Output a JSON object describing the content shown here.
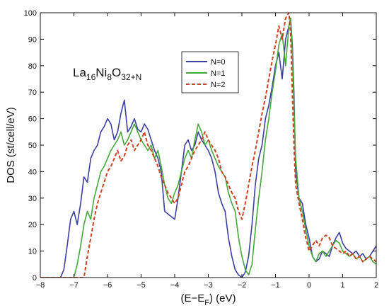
{
  "chart_data": {
    "type": "line",
    "title": "",
    "formula": {
      "base": [
        "La",
        "Ni",
        "O"
      ],
      "subs": [
        "16",
        "8",
        "32+N"
      ]
    },
    "xlabel": {
      "prefix": "(E−E",
      "sub": "F",
      "suffix": ") (eV)"
    },
    "ylabel": "DOS (st/cell/eV)",
    "xlim": [
      -8,
      2
    ],
    "ylim": [
      0,
      100
    ],
    "xticks": [
      -8,
      -7,
      -6,
      -5,
      -4,
      -3,
      -2,
      -1,
      0,
      1,
      2
    ],
    "yticks": [
      0,
      10,
      20,
      30,
      40,
      50,
      60,
      70,
      80,
      90,
      100
    ],
    "grid": false,
    "legend_position": "upper-middle",
    "series": [
      {
        "name": "N=0",
        "color": "#3a3fa0",
        "dash": "solid",
        "x": [
          -8.0,
          -7.4,
          -7.3,
          -7.2,
          -7.1,
          -7.0,
          -6.9,
          -6.8,
          -6.7,
          -6.6,
          -6.5,
          -6.4,
          -6.3,
          -6.2,
          -6.1,
          -6.0,
          -5.9,
          -5.8,
          -5.7,
          -5.6,
          -5.5,
          -5.4,
          -5.3,
          -5.2,
          -5.1,
          -5.0,
          -4.9,
          -4.8,
          -4.7,
          -4.6,
          -4.5,
          -4.4,
          -4.3,
          -4.2,
          -4.1,
          -4.0,
          -3.9,
          -3.8,
          -3.7,
          -3.6,
          -3.5,
          -3.4,
          -3.3,
          -3.2,
          -3.1,
          -3.0,
          -2.9,
          -2.8,
          -2.7,
          -2.6,
          -2.5,
          -2.4,
          -2.3,
          -2.2,
          -2.1,
          -2.0,
          -1.9,
          -1.8,
          -1.7,
          -1.6,
          -1.5,
          -1.4,
          -1.3,
          -1.2,
          -1.1,
          -1.0,
          -0.9,
          -0.8,
          -0.7,
          -0.6,
          -0.55,
          -0.5,
          -0.45,
          -0.4,
          -0.3,
          -0.2,
          -0.1,
          0.0,
          0.1,
          0.2,
          0.3,
          0.4,
          0.5,
          0.6,
          0.7,
          0.8,
          0.9,
          1.0,
          1.1,
          1.2,
          1.3,
          1.4,
          1.5,
          1.6,
          1.7,
          1.8,
          1.9,
          2.0
        ],
        "y": [
          0,
          0,
          3,
          12,
          22,
          25,
          20,
          28,
          38,
          36,
          45,
          48,
          50,
          55,
          57,
          60,
          58,
          52,
          55,
          62,
          67,
          55,
          57,
          60,
          56,
          55,
          58,
          56,
          52,
          48,
          45,
          40,
          25,
          24,
          23,
          22,
          30,
          40,
          50,
          52,
          48,
          50,
          55,
          52,
          50,
          48,
          45,
          40,
          32,
          28,
          25,
          15,
          8,
          3,
          1,
          0,
          2,
          8,
          20,
          35,
          45,
          50,
          60,
          65,
          72,
          80,
          85,
          75,
          90,
          95,
          98,
          88,
          70,
          40,
          30,
          28,
          20,
          15,
          8,
          6,
          7,
          10,
          9,
          8,
          12,
          15,
          17,
          13,
          11,
          10,
          9,
          10,
          8,
          9,
          7,
          8,
          10,
          12
        ]
      },
      {
        "name": "N=1",
        "color": "#45a83a",
        "dash": "solid",
        "x": [
          -8.0,
          -7.0,
          -6.9,
          -6.8,
          -6.7,
          -6.6,
          -6.5,
          -6.4,
          -6.3,
          -6.2,
          -6.1,
          -6.0,
          -5.9,
          -5.8,
          -5.7,
          -5.6,
          -5.5,
          -5.4,
          -5.3,
          -5.2,
          -5.1,
          -5.0,
          -4.9,
          -4.8,
          -4.7,
          -4.6,
          -4.5,
          -4.4,
          -4.3,
          -4.2,
          -4.1,
          -4.0,
          -3.9,
          -3.8,
          -3.7,
          -3.6,
          -3.5,
          -3.4,
          -3.3,
          -3.2,
          -3.1,
          -3.0,
          -2.9,
          -2.8,
          -2.7,
          -2.6,
          -2.5,
          -2.4,
          -2.3,
          -2.2,
          -2.1,
          -2.0,
          -1.9,
          -1.8,
          -1.7,
          -1.6,
          -1.5,
          -1.4,
          -1.3,
          -1.2,
          -1.1,
          -1.0,
          -0.9,
          -0.8,
          -0.7,
          -0.6,
          -0.55,
          -0.5,
          -0.45,
          -0.4,
          -0.3,
          -0.2,
          -0.1,
          0.0,
          0.1,
          0.2,
          0.3,
          0.4,
          0.5,
          0.6,
          0.7,
          0.8,
          0.9,
          1.0,
          1.1,
          1.2,
          1.3,
          1.4,
          1.5,
          1.6,
          1.7,
          1.8,
          1.9,
          2.0
        ],
        "y": [
          0,
          0,
          5,
          12,
          20,
          25,
          22,
          30,
          35,
          40,
          42,
          45,
          48,
          50,
          52,
          55,
          50,
          52,
          55,
          58,
          55,
          52,
          50,
          48,
          50,
          45,
          48,
          42,
          35,
          30,
          28,
          32,
          35,
          40,
          45,
          48,
          45,
          52,
          58,
          55,
          50,
          52,
          48,
          45,
          42,
          40,
          38,
          32,
          28,
          25,
          15,
          8,
          3,
          1,
          5,
          18,
          30,
          40,
          52,
          60,
          70,
          78,
          88,
          92,
          80,
          95,
          98,
          85,
          65,
          45,
          30,
          25,
          18,
          12,
          8,
          6,
          9,
          10,
          8,
          10,
          12,
          14,
          13,
          10,
          9,
          8,
          9,
          7,
          8,
          6,
          7,
          8,
          6,
          5
        ]
      },
      {
        "name": "N=2",
        "color": "#d0401f",
        "dash": "dashed",
        "x": [
          -8.0,
          -6.7,
          -6.6,
          -6.5,
          -6.4,
          -6.3,
          -6.2,
          -6.1,
          -6.0,
          -5.9,
          -5.8,
          -5.7,
          -5.6,
          -5.5,
          -5.4,
          -5.3,
          -5.2,
          -5.1,
          -5.0,
          -4.9,
          -4.8,
          -4.7,
          -4.6,
          -4.5,
          -4.4,
          -4.3,
          -4.2,
          -4.1,
          -4.0,
          -3.9,
          -3.8,
          -3.7,
          -3.6,
          -3.5,
          -3.4,
          -3.3,
          -3.2,
          -3.1,
          -3.0,
          -2.9,
          -2.8,
          -2.7,
          -2.6,
          -2.5,
          -2.4,
          -2.3,
          -2.2,
          -2.1,
          -2.0,
          -1.9,
          -1.8,
          -1.7,
          -1.6,
          -1.5,
          -1.4,
          -1.3,
          -1.2,
          -1.1,
          -1.0,
          -0.9,
          -0.8,
          -0.7,
          -0.6,
          -0.55,
          -0.5,
          -0.45,
          -0.4,
          -0.3,
          -0.2,
          -0.1,
          0.0,
          0.1,
          0.2,
          0.3,
          0.4,
          0.5,
          0.6,
          0.7,
          0.8,
          0.9,
          1.0,
          1.1,
          1.2,
          1.3,
          1.4,
          1.5,
          1.6,
          1.7,
          1.8,
          1.9,
          2.0
        ],
        "y": [
          0,
          0,
          8,
          15,
          22,
          28,
          32,
          36,
          40,
          42,
          45,
          48,
          44,
          46,
          50,
          52,
          48,
          50,
          52,
          55,
          50,
          48,
          45,
          42,
          38,
          35,
          32,
          30,
          28,
          30,
          35,
          40,
          42,
          45,
          48,
          50,
          52,
          55,
          52,
          50,
          48,
          45,
          40,
          38,
          35,
          32,
          30,
          25,
          22,
          28,
          35,
          42,
          48,
          55,
          62,
          68,
          75,
          82,
          88,
          95,
          90,
          98,
          100,
          92,
          70,
          50,
          35,
          28,
          22,
          15,
          10,
          12,
          14,
          12,
          15,
          16,
          15,
          12,
          11,
          10,
          9,
          10,
          8,
          9,
          7,
          8,
          6,
          7,
          8,
          7,
          6
        ]
      }
    ]
  }
}
